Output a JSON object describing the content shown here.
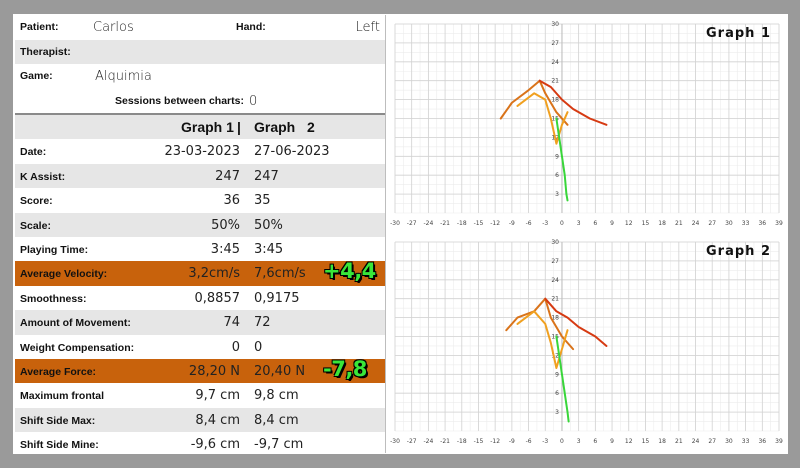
{
  "info": {
    "patient_label": "Patient:",
    "patient": "Carlos",
    "hand_label": "Hand:",
    "hand": "Left",
    "therapist_label": "Therapist:",
    "therapist": "",
    "game_label": "Game:",
    "game": "Alquimia",
    "sessions_label": "Sessions between charts:",
    "sessions": "0"
  },
  "header": {
    "g1": "Graph 1",
    "sep": "|",
    "g2": "Graph",
    "g2n": "2"
  },
  "stats": [
    {
      "label": "Date:",
      "v1": "23-03-2023",
      "v2": "27-06-2023",
      "delta": ""
    },
    {
      "label": "K Assist:",
      "v1": "247",
      "v2": "247",
      "delta": ""
    },
    {
      "label": "Score:",
      "v1": "36",
      "v2": "35",
      "delta": ""
    },
    {
      "label": "Scale:",
      "v1": "50%",
      "v2": "50%",
      "delta": ""
    },
    {
      "label": "Playing Time:",
      "v1": "3:45",
      "v2": "3:45",
      "delta": ""
    },
    {
      "label": "Average Velocity:",
      "v1": "3,2cm/s",
      "v2": "7,6cm/s",
      "delta": "+4,4"
    },
    {
      "label": "Smoothness:",
      "v1": "0,8857",
      "v2": "0,9175",
      "delta": ""
    },
    {
      "label": "Amount of Movement:",
      "v1": "74",
      "v2": "72",
      "delta": ""
    },
    {
      "label": "Weight Compensation:",
      "v1": "0",
      "v2": "0",
      "delta": ""
    },
    {
      "label": "Average Force:",
      "v1": "28,20 N",
      "v2": "20,40 N",
      "delta": "-7,8"
    },
    {
      "label": "Maximum frontal",
      "v1": "9,7 cm",
      "v2": "9,8 cm",
      "delta": ""
    },
    {
      "label": "Shift Side Max:",
      "v1": "8,4 cm",
      "v2": "8,4 cm",
      "delta": ""
    },
    {
      "label": "Shift Side Mine:",
      "v1": "-9,6 cm",
      "v2": "-9,7 cm",
      "delta": ""
    }
  ],
  "chart_data": [
    {
      "type": "line",
      "title": "Graph 1",
      "xlim": [
        -30,
        39
      ],
      "ylim": [
        0,
        30
      ],
      "x_ticks": [
        "-30",
        "-27",
        "-24",
        "-21",
        "-18",
        "-15",
        "-12",
        "-9",
        "-6",
        "-3",
        "0",
        "3",
        "6",
        "9",
        "12",
        "15",
        "18",
        "21",
        "24",
        "27",
        "30",
        "33",
        "36",
        "39"
      ],
      "y_ticks": [
        "3",
        "6",
        "9",
        "12",
        "15",
        "18",
        "21",
        "24",
        "27",
        "30"
      ],
      "colors": {
        "trace_a": "#d9731a",
        "trace_b": "#d63a12",
        "trace_c": "#f0a020",
        "trace_d": "#39d63a"
      },
      "series": [
        {
          "values": [
            [
              -11,
              15
            ],
            [
              -9,
              17.5
            ],
            [
              -6,
              19.5
            ],
            [
              -4,
              21
            ],
            [
              -3,
              19
            ],
            [
              -1,
              16
            ],
            [
              1,
              14
            ]
          ]
        },
        {
          "values": [
            [
              -4,
              21
            ],
            [
              -2,
              20
            ],
            [
              0,
              18
            ],
            [
              2,
              16.5
            ],
            [
              5,
              15
            ],
            [
              8,
              14
            ]
          ]
        },
        {
          "values": [
            [
              -8,
              17
            ],
            [
              -5,
              19
            ],
            [
              -3,
              18
            ],
            [
              -2,
              15
            ],
            [
              -1,
              11
            ],
            [
              0,
              14
            ],
            [
              1,
              16
            ]
          ]
        },
        {
          "values": [
            [
              -1,
              15
            ],
            [
              -0.5,
              12
            ],
            [
              0,
              9
            ],
            [
              0.5,
              6
            ],
            [
              0.8,
              3
            ],
            [
              1,
              2
            ]
          ]
        }
      ]
    },
    {
      "type": "line",
      "title": "Graph 2",
      "xlim": [
        -30,
        39
      ],
      "ylim": [
        0,
        30
      ],
      "x_ticks": [
        "-30",
        "-27",
        "-24",
        "-21",
        "-18",
        "-15",
        "-12",
        "-9",
        "-6",
        "-3",
        "0",
        "3",
        "6",
        "9",
        "12",
        "15",
        "18",
        "21",
        "24",
        "27",
        "30",
        "33",
        "36",
        "39"
      ],
      "y_ticks": [
        "3",
        "6",
        "9",
        "12",
        "15",
        "18",
        "21",
        "24",
        "27",
        "30"
      ],
      "colors": {
        "trace_a": "#d9731a",
        "trace_b": "#d63a12",
        "trace_c": "#f0a020",
        "trace_d": "#39d63a"
      },
      "series": [
        {
          "values": [
            [
              -10,
              16
            ],
            [
              -8,
              18
            ],
            [
              -5,
              19
            ],
            [
              -3,
              21
            ],
            [
              -2,
              18
            ],
            [
              0,
              15
            ],
            [
              2,
              13
            ]
          ]
        },
        {
          "values": [
            [
              -3,
              21
            ],
            [
              -1,
              19
            ],
            [
              1,
              18
            ],
            [
              3,
              16.5
            ],
            [
              6,
              15
            ],
            [
              8,
              13.5
            ]
          ]
        },
        {
          "values": [
            [
              -8,
              17
            ],
            [
              -5,
              19
            ],
            [
              -3,
              17
            ],
            [
              -2,
              14
            ],
            [
              -1,
              10
            ],
            [
              0,
              13
            ],
            [
              1,
              16
            ]
          ]
        },
        {
          "values": [
            [
              -1,
              15
            ],
            [
              -0.5,
              12
            ],
            [
              0,
              9
            ],
            [
              0.5,
              6
            ],
            [
              1,
              3
            ],
            [
              1.2,
              1.5
            ]
          ]
        }
      ]
    }
  ]
}
